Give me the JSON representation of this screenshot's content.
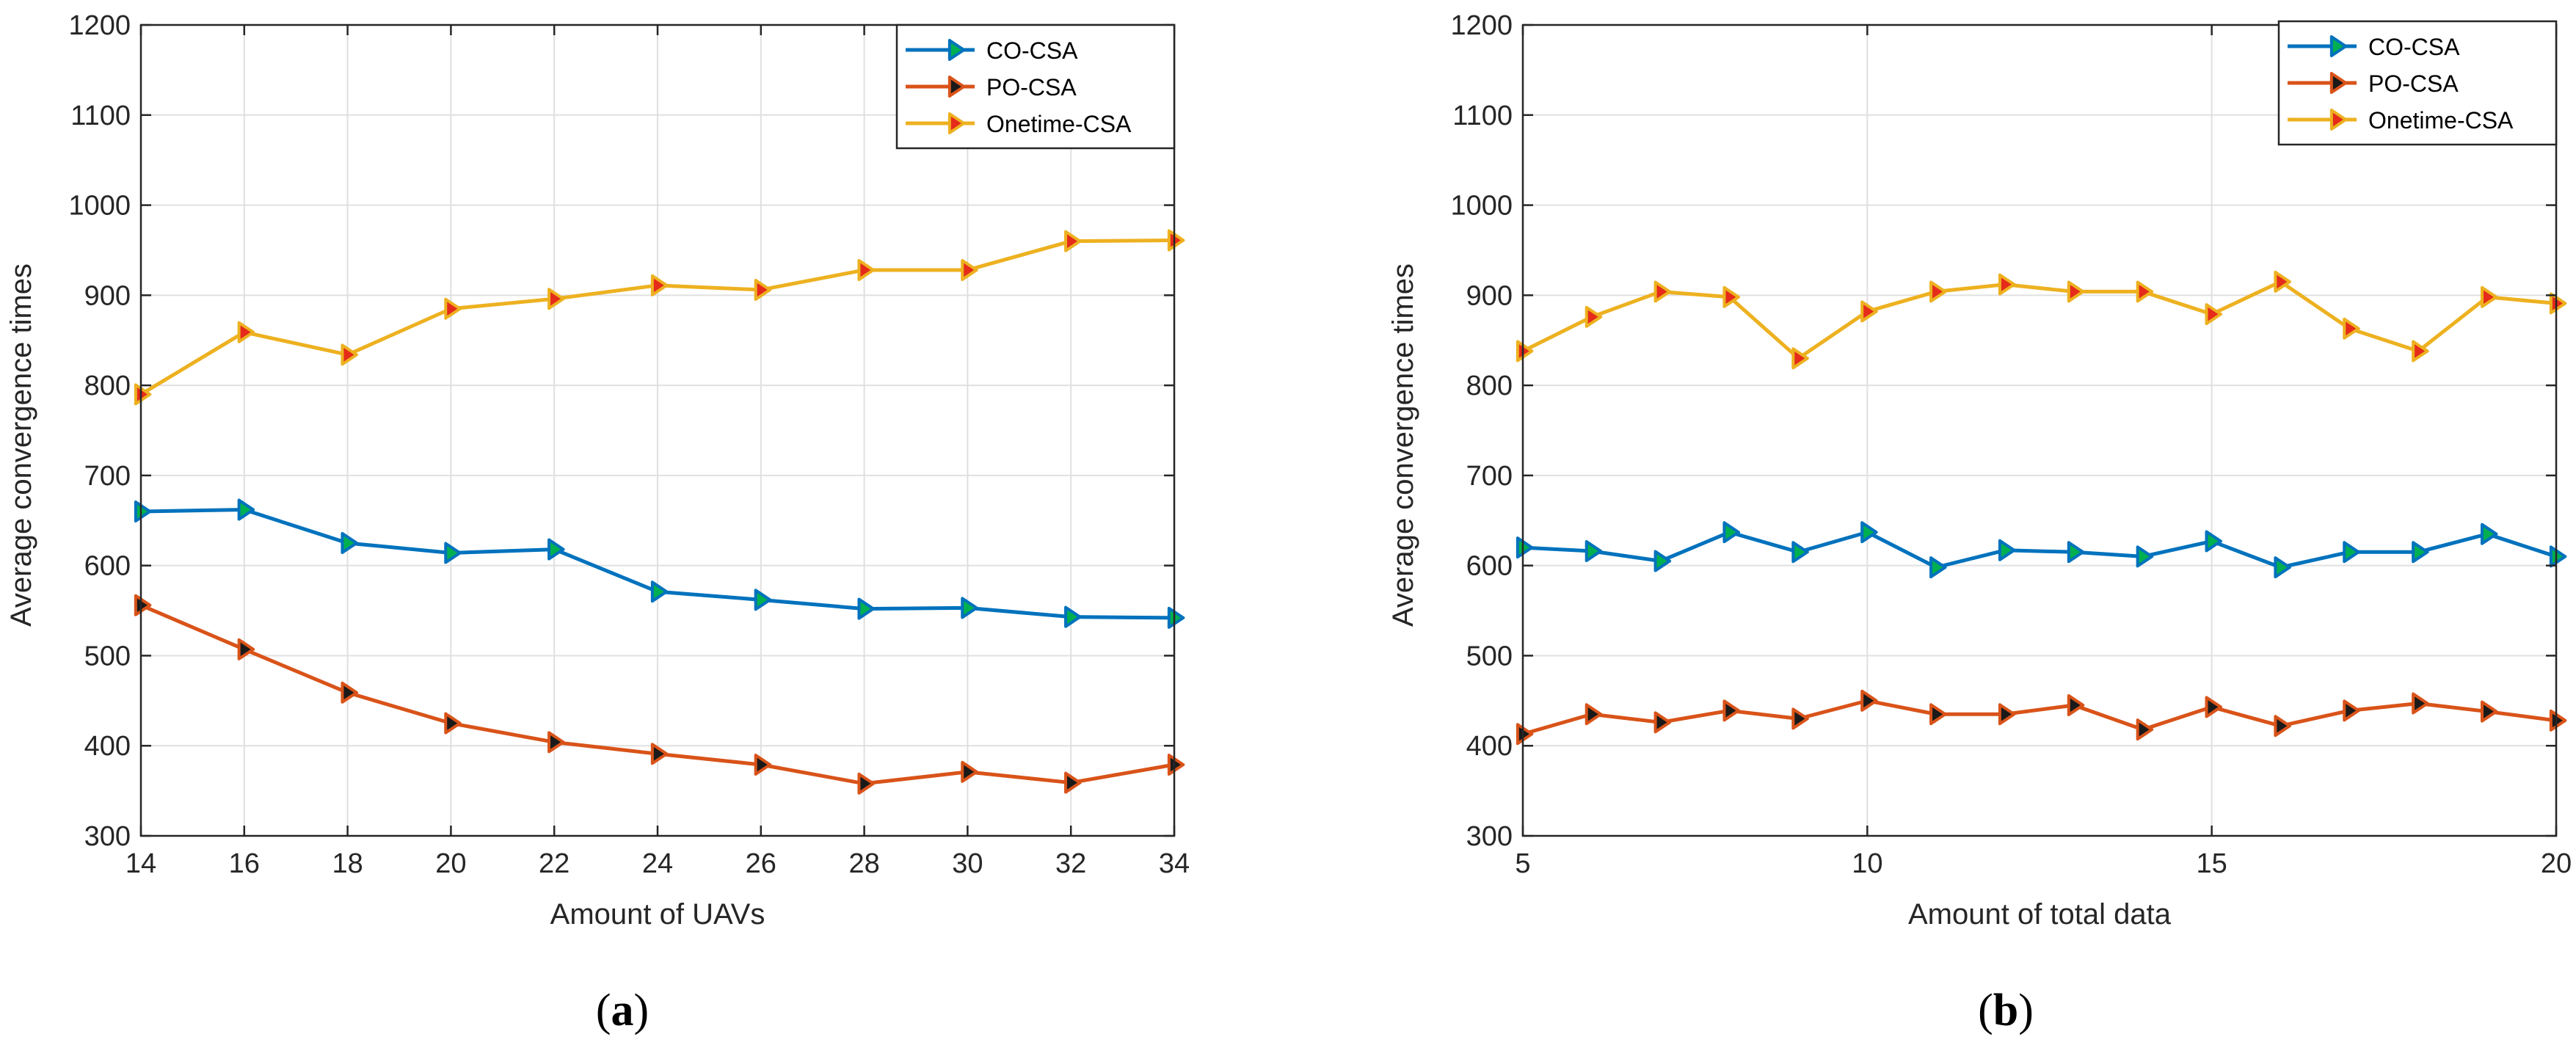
{
  "chart_data": [
    {
      "type": "line",
      "caption_open": "(",
      "caption_letter": "a",
      "caption_close": ")",
      "xlabel": "Amount of UAVs",
      "ylabel": "Average convergence times",
      "xlim": [
        14,
        34
      ],
      "ylim": [
        300,
        1200
      ],
      "xticks": [
        14,
        16,
        18,
        20,
        22,
        24,
        26,
        28,
        30,
        32,
        34
      ],
      "yticks": [
        300,
        400,
        500,
        600,
        700,
        800,
        900,
        1000,
        1100,
        1200
      ],
      "grid": true,
      "legend_position": "top-right",
      "x": [
        14,
        16,
        18,
        20,
        22,
        24,
        26,
        28,
        30,
        32,
        34
      ],
      "series": [
        {
          "name": "CO-CSA",
          "color": "#0072BD",
          "marker_color": "#00B050",
          "values": [
            660,
            662,
            625,
            614,
            618,
            571,
            562,
            552,
            553,
            543,
            542
          ]
        },
        {
          "name": "PO-CSA",
          "color": "#D95319",
          "marker_color": "#1A1A1A",
          "values": [
            556,
            507,
            459,
            425,
            404,
            391,
            379,
            358,
            371,
            359,
            379
          ]
        },
        {
          "name": "Onetime-CSA",
          "color": "#EDB120",
          "marker_color": "#E52B1A",
          "values": [
            790,
            859,
            834,
            885,
            896,
            911,
            906,
            928,
            928,
            960,
            961
          ]
        }
      ]
    },
    {
      "type": "line",
      "caption_open": "(",
      "caption_letter": "b",
      "caption_close": ")",
      "xlabel": "Amount of total data",
      "ylabel": "Average convergence times",
      "xlim": [
        5,
        20
      ],
      "ylim": [
        300,
        1200
      ],
      "xticks": [
        5,
        10,
        15,
        20
      ],
      "yticks": [
        300,
        400,
        500,
        600,
        700,
        800,
        900,
        1000,
        1100,
        1200
      ],
      "grid": true,
      "legend_position": "top-right",
      "x": [
        5,
        6,
        7,
        8,
        9,
        10,
        11,
        12,
        13,
        14,
        15,
        16,
        17,
        18,
        19,
        20
      ],
      "series": [
        {
          "name": "CO-CSA",
          "color": "#0072BD",
          "marker_color": "#00B050",
          "values": [
            620,
            616,
            605,
            637,
            615,
            637,
            598,
            617,
            615,
            610,
            627,
            598,
            615,
            615,
            635,
            610
          ]
        },
        {
          "name": "PO-CSA",
          "color": "#D95319",
          "marker_color": "#1A1A1A",
          "values": [
            413,
            435,
            426,
            439,
            430,
            450,
            435,
            435,
            445,
            418,
            443,
            422,
            439,
            447,
            438,
            428
          ]
        },
        {
          "name": "Onetime-CSA",
          "color": "#EDB120",
          "marker_color": "#E52B1A",
          "values": [
            838,
            876,
            904,
            898,
            830,
            882,
            904,
            912,
            904,
            904,
            879,
            915,
            863,
            838,
            898,
            891
          ]
        }
      ]
    }
  ]
}
